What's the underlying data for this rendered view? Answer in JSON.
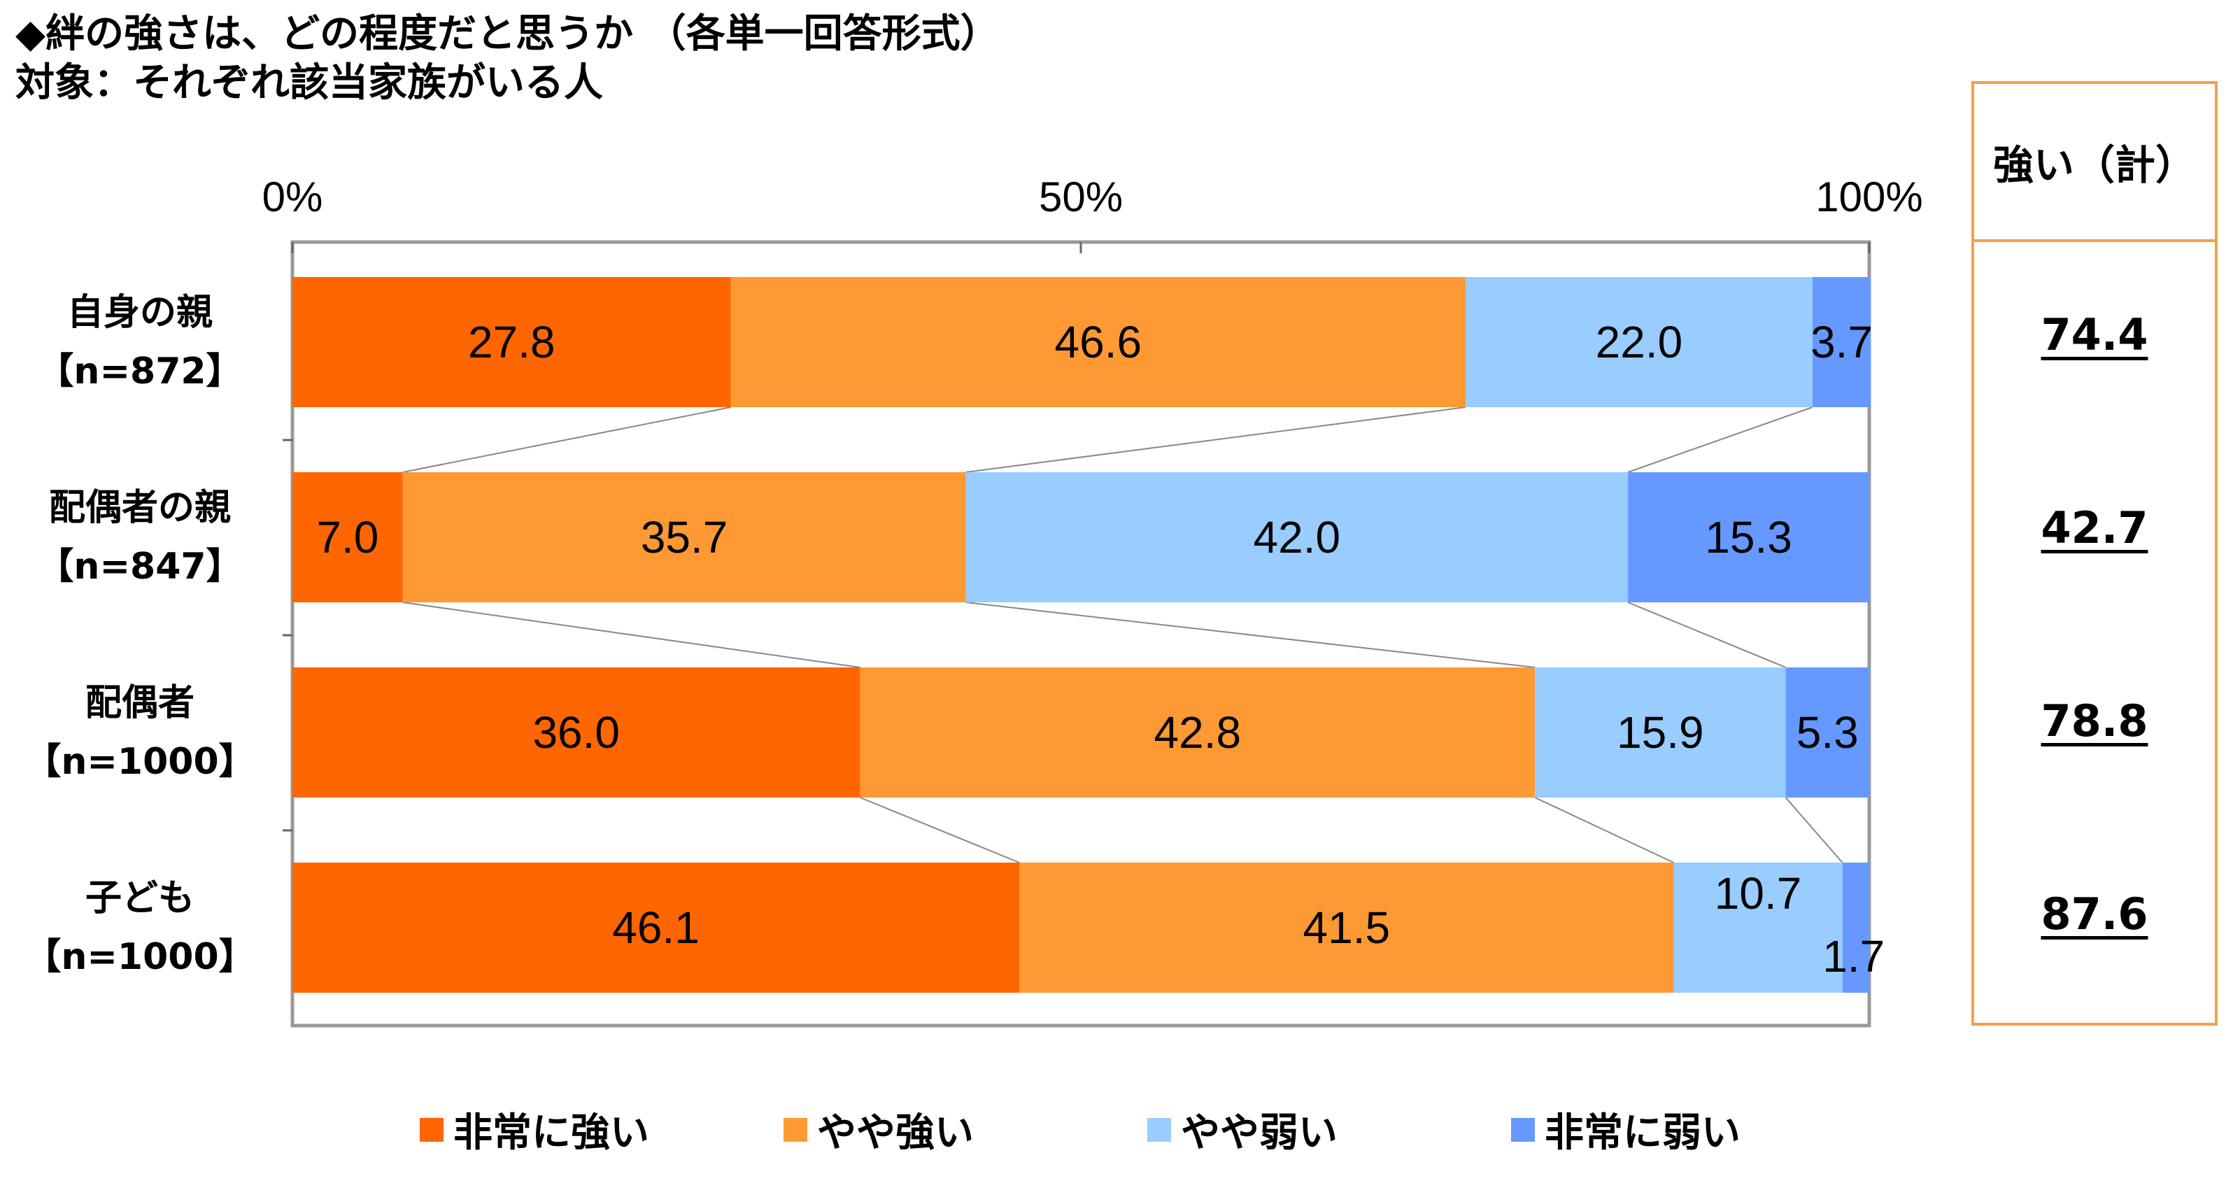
{
  "title": {
    "line1": "◆絆の強さは、どの程度だと思うか （各単一回答形式）",
    "line2": "対象：それぞれ該当家族がいる人"
  },
  "summary": {
    "header": "強い（計）",
    "values": [
      "74.4",
      "42.7",
      "78.8",
      "87.6"
    ]
  },
  "colors": {
    "very_strong": "#FF6600",
    "somewhat_strong": "#FF9933",
    "somewhat_weak": "#99CCFF",
    "very_weak": "#6699FF",
    "summary_border": "#F2A04A"
  },
  "chart_data": {
    "type": "bar",
    "orientation": "horizontal",
    "stacked": true,
    "percent": true,
    "xlim": [
      0,
      100
    ],
    "xticks": [
      "0%",
      "50%",
      "100%"
    ],
    "categories": [
      {
        "name": "自身の親",
        "n": "【n=872】"
      },
      {
        "name": "配偶者の親",
        "n": "【n=847】"
      },
      {
        "name": "配偶者",
        "n": "【n=1000】"
      },
      {
        "name": "子ども",
        "n": "【n=1000】"
      }
    ],
    "series": [
      {
        "name": "非常に強い",
        "values": [
          27.8,
          7.0,
          36.0,
          46.1
        ]
      },
      {
        "name": "やや強い",
        "values": [
          46.6,
          35.7,
          42.8,
          41.5
        ]
      },
      {
        "name": "やや弱い",
        "values": [
          22.0,
          42.0,
          15.9,
          10.7
        ]
      },
      {
        "name": "非常に弱い",
        "values": [
          3.7,
          15.3,
          5.3,
          1.7
        ]
      }
    ],
    "legend_position": "bottom"
  }
}
